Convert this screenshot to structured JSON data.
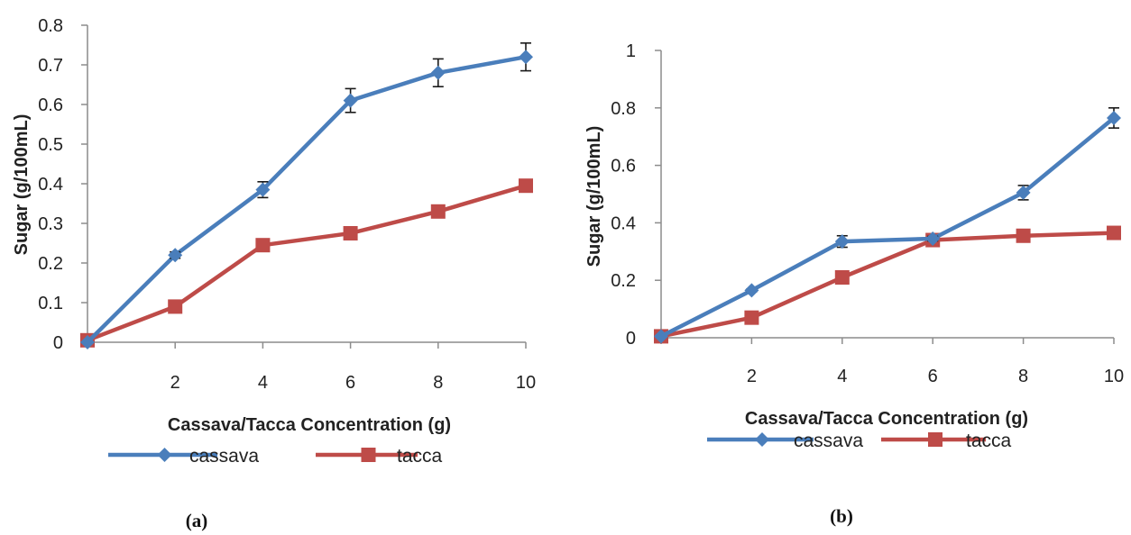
{
  "chart_data": [
    {
      "type": "line",
      "panel_label": "(a)",
      "xlabel": "Cassava/Tacca  Concentration (g)",
      "ylabel": "Sugar (g/100mL)",
      "x": [
        0,
        2,
        4,
        6,
        8,
        10
      ],
      "x_tick_labels": [
        "2",
        "4",
        "6",
        "8",
        "10"
      ],
      "y_ticks": [
        "0",
        "0.1",
        "0.2",
        "0.3",
        "0.4",
        "0.5",
        "0.6",
        "0.7",
        "0.8"
      ],
      "ylim": [
        0,
        0.8
      ],
      "xlim": [
        0,
        10
      ],
      "legend_position": "bottom",
      "series": [
        {
          "name": "cassava",
          "color": "#4a7ebb",
          "marker": "diamond",
          "values": [
            0.0,
            0.22,
            0.385,
            0.61,
            0.68,
            0.72
          ],
          "error": [
            0.0,
            0.008,
            0.02,
            0.03,
            0.035,
            0.035
          ]
        },
        {
          "name": "tacca",
          "color": "#be4b48",
          "marker": "square",
          "values": [
            0.005,
            0.09,
            0.245,
            0.275,
            0.33,
            0.395
          ],
          "error": [
            0,
            0,
            0,
            0,
            0,
            0
          ]
        }
      ]
    },
    {
      "type": "line",
      "panel_label": "(b)",
      "xlabel": "Cassava/Tacca  Concentration (g)",
      "ylabel": "Sugar (g/100mL)",
      "x": [
        0,
        2,
        4,
        6,
        8,
        10
      ],
      "x_tick_labels": [
        "2",
        "4",
        "6",
        "8",
        "10"
      ],
      "y_ticks": [
        "0",
        "0.2",
        "0.4",
        "0.6",
        "0.8",
        "1"
      ],
      "ylim": [
        0,
        1
      ],
      "xlim": [
        0,
        10
      ],
      "legend_position": "bottom",
      "series": [
        {
          "name": "cassava",
          "color": "#4a7ebb",
          "marker": "diamond",
          "values": [
            0.005,
            0.165,
            0.335,
            0.345,
            0.505,
            0.765
          ],
          "error": [
            0.0,
            0.005,
            0.02,
            0.008,
            0.025,
            0.035
          ]
        },
        {
          "name": "tacca",
          "color": "#be4b48",
          "marker": "square",
          "values": [
            0.005,
            0.07,
            0.21,
            0.34,
            0.355,
            0.365
          ],
          "error": [
            0,
            0,
            0,
            0,
            0,
            0
          ]
        }
      ]
    }
  ]
}
